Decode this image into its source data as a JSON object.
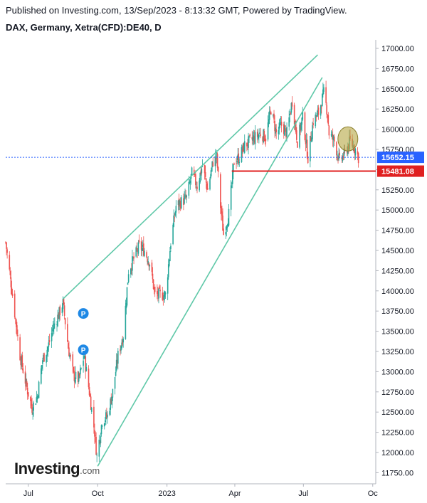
{
  "header": {
    "published": "Published on Investing.com, 13/Sep/2023 - 8:13:32 GMT, Powered by TradingView.",
    "symbol": "DAX, Germany, Xetra(CFD):DE40, D"
  },
  "logo": {
    "main": "Investing",
    "domain": ".com"
  },
  "colors": {
    "up": "#26a69a",
    "down": "#ef5350",
    "trendline": "#5fc8a8",
    "support": "#e02020",
    "last_price": "#2962ff",
    "highlight": "#b5a642"
  },
  "chart_data": {
    "type": "candlestick",
    "ylim": [
      11600,
      17100
    ],
    "yticks": [
      "17000.00",
      "16750.00",
      "16500.00",
      "16250.00",
      "16000.00",
      "15750.00",
      "15500.00",
      "15250.00",
      "15000.00",
      "14750.00",
      "14500.00",
      "14250.00",
      "14000.00",
      "13750.00",
      "13500.00",
      "13250.00",
      "13000.00",
      "12750.00",
      "12500.00",
      "12250.00",
      "12000.00",
      "11750.00"
    ],
    "xticks": [
      "Jul",
      "Oct",
      "2023",
      "Apr",
      "Jul",
      "Oc"
    ],
    "xlim": [
      "2022-06-01",
      "2023-10-05"
    ],
    "xtick_dates": [
      "2022-07-01",
      "2022-10-01",
      "2023-01-01",
      "2023-04-01",
      "2023-07-01",
      "2023-10-01"
    ],
    "last_price": {
      "value": 15652.15,
      "label": "15652.15"
    },
    "support": {
      "value": 15481.08,
      "label": "15481.08",
      "from": "2023-03-28"
    },
    "trendlines": [
      {
        "from": {
          "date": "2022-08-16",
          "value": 13900
        },
        "to": {
          "date": "2023-07-20",
          "value": 16920
        }
      },
      {
        "from": {
          "date": "2022-10-01",
          "value": 11830
        },
        "to": {
          "date": "2023-07-26",
          "value": 16640
        }
      }
    ],
    "markers": [
      {
        "label": "P",
        "date": "2022-09-12",
        "value": 13720
      },
      {
        "label": "P",
        "date": "2022-09-12",
        "value": 13270
      }
    ],
    "highlight": {
      "date": "2023-08-29",
      "value": 15880
    },
    "series": [
      {
        "date": "2022-06-01",
        "close": 14600
      },
      {
        "date": "2022-06-10",
        "close": 13950
      },
      {
        "date": "2022-06-20",
        "close": 13200
      },
      {
        "date": "2022-06-29",
        "close": 12800
      },
      {
        "date": "2022-07-06",
        "close": 12550
      },
      {
        "date": "2022-07-13",
        "close": 12700
      },
      {
        "date": "2022-07-20",
        "close": 13150
      },
      {
        "date": "2022-07-27",
        "close": 13300
      },
      {
        "date": "2022-08-03",
        "close": 13550
      },
      {
        "date": "2022-08-10",
        "close": 13700
      },
      {
        "date": "2022-08-16",
        "close": 13850
      },
      {
        "date": "2022-08-23",
        "close": 13300
      },
      {
        "date": "2022-08-30",
        "close": 12950
      },
      {
        "date": "2022-09-06",
        "close": 12900
      },
      {
        "date": "2022-09-13",
        "close": 13200
      },
      {
        "date": "2022-09-20",
        "close": 12750
      },
      {
        "date": "2022-09-27",
        "close": 12250
      },
      {
        "date": "2022-09-30",
        "close": 11950
      },
      {
        "date": "2022-10-07",
        "close": 12400
      },
      {
        "date": "2022-10-14",
        "close": 12450
      },
      {
        "date": "2022-10-21",
        "close": 12750
      },
      {
        "date": "2022-10-28",
        "close": 13200
      },
      {
        "date": "2022-11-04",
        "close": 13450
      },
      {
        "date": "2022-11-11",
        "close": 14250
      },
      {
        "date": "2022-11-18",
        "close": 14400
      },
      {
        "date": "2022-11-25",
        "close": 14550
      },
      {
        "date": "2022-12-02",
        "close": 14500
      },
      {
        "date": "2022-12-09",
        "close": 14350
      },
      {
        "date": "2022-12-16",
        "close": 13950
      },
      {
        "date": "2022-12-23",
        "close": 13950
      },
      {
        "date": "2022-12-30",
        "close": 13950
      },
      {
        "date": "2023-01-06",
        "close": 14600
      },
      {
        "date": "2023-01-13",
        "close": 15050
      },
      {
        "date": "2023-01-20",
        "close": 15100
      },
      {
        "date": "2023-01-27",
        "close": 15150
      },
      {
        "date": "2023-02-03",
        "close": 15450
      },
      {
        "date": "2023-02-10",
        "close": 15300
      },
      {
        "date": "2023-02-17",
        "close": 15550
      },
      {
        "date": "2023-02-24",
        "close": 15250
      },
      {
        "date": "2023-03-03",
        "close": 15600
      },
      {
        "date": "2023-03-08",
        "close": 15650
      },
      {
        "date": "2023-03-13",
        "close": 15050
      },
      {
        "date": "2023-03-17",
        "close": 14700
      },
      {
        "date": "2023-03-24",
        "close": 14950
      },
      {
        "date": "2023-03-31",
        "close": 15600
      },
      {
        "date": "2023-04-07",
        "close": 15650
      },
      {
        "date": "2023-04-14",
        "close": 15800
      },
      {
        "date": "2023-04-21",
        "close": 15850
      },
      {
        "date": "2023-04-28",
        "close": 15900
      },
      {
        "date": "2023-05-05",
        "close": 15950
      },
      {
        "date": "2023-05-12",
        "close": 15900
      },
      {
        "date": "2023-05-19",
        "close": 16250
      },
      {
        "date": "2023-05-26",
        "close": 15950
      },
      {
        "date": "2023-06-02",
        "close": 16050
      },
      {
        "date": "2023-06-09",
        "close": 15950
      },
      {
        "date": "2023-06-16",
        "close": 16350
      },
      {
        "date": "2023-06-23",
        "close": 15850
      },
      {
        "date": "2023-06-30",
        "close": 16150
      },
      {
        "date": "2023-07-07",
        "close": 15650
      },
      {
        "date": "2023-07-14",
        "close": 16100
      },
      {
        "date": "2023-07-21",
        "close": 16200
      },
      {
        "date": "2023-07-28",
        "close": 16450
      },
      {
        "date": "2023-08-02",
        "close": 16200
      },
      {
        "date": "2023-08-04",
        "close": 15950
      },
      {
        "date": "2023-08-11",
        "close": 15850
      },
      {
        "date": "2023-08-18",
        "close": 15600
      },
      {
        "date": "2023-08-25",
        "close": 15700
      },
      {
        "date": "2023-09-01",
        "close": 15850
      },
      {
        "date": "2023-09-08",
        "close": 15750
      },
      {
        "date": "2023-09-12",
        "close": 15652
      }
    ]
  }
}
